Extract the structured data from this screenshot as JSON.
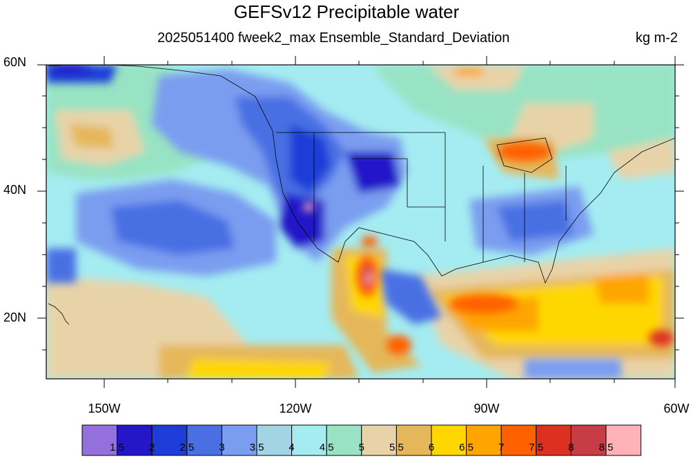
{
  "title": "GEFSv12 Precipitable water",
  "subtitle": "2025051400 fweek2_max Ensemble_Standard_Deviation",
  "units": "kg m-2",
  "lat_labels": [
    "60N",
    "40N",
    "20N"
  ],
  "lon_labels": [
    "150W",
    "120W",
    "90W",
    "60W"
  ],
  "colorbar": {
    "labels": [
      "1.5",
      "2",
      "2.5",
      "3",
      "3.5",
      "4",
      "4.5",
      "5",
      "5.5",
      "6",
      "6.5",
      "7",
      "7.5",
      "8",
      "8.5"
    ],
    "colors": [
      "#9370DB",
      "#2317C8",
      "#1E3CD8",
      "#4A6FE3",
      "#7A9DF0",
      "#A2D4E6",
      "#A4ECF1",
      "#98E3C3",
      "#E8D3A8",
      "#E5B75A",
      "#FFD700",
      "#FFA500",
      "#FF6000",
      "#DC3020",
      "#C83D45",
      "#FFB2B8"
    ]
  },
  "map": {
    "domain_lon": [
      -160,
      -60
    ],
    "domain_lat": [
      10,
      60
    ]
  }
}
